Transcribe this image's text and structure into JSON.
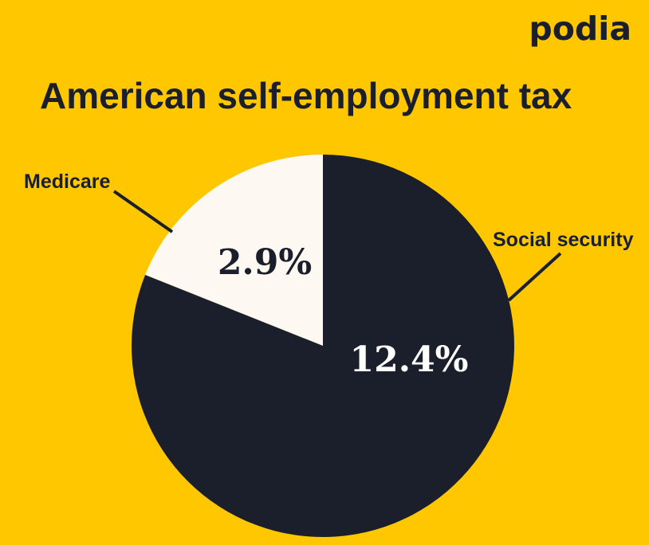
{
  "brand": {
    "logo_text": "podia"
  },
  "colors": {
    "background": "#FFC700",
    "dark": "#1A1F2B",
    "light": "#FDF8F1"
  },
  "chart_data": {
    "type": "pie",
    "title": "American self-employment tax",
    "slices": [
      {
        "label": "Medicare",
        "value": 2.9,
        "display": "2.9%",
        "color": "#FDF8F1",
        "label_color": "#1A1F2B"
      },
      {
        "label": "Social security",
        "value": 12.4,
        "display": "12.4%",
        "color": "#1A1F2B",
        "label_color": "#FFFFFF"
      }
    ],
    "start_angle": "12 o'clock",
    "direction": "counter-clockwise for first slice"
  }
}
